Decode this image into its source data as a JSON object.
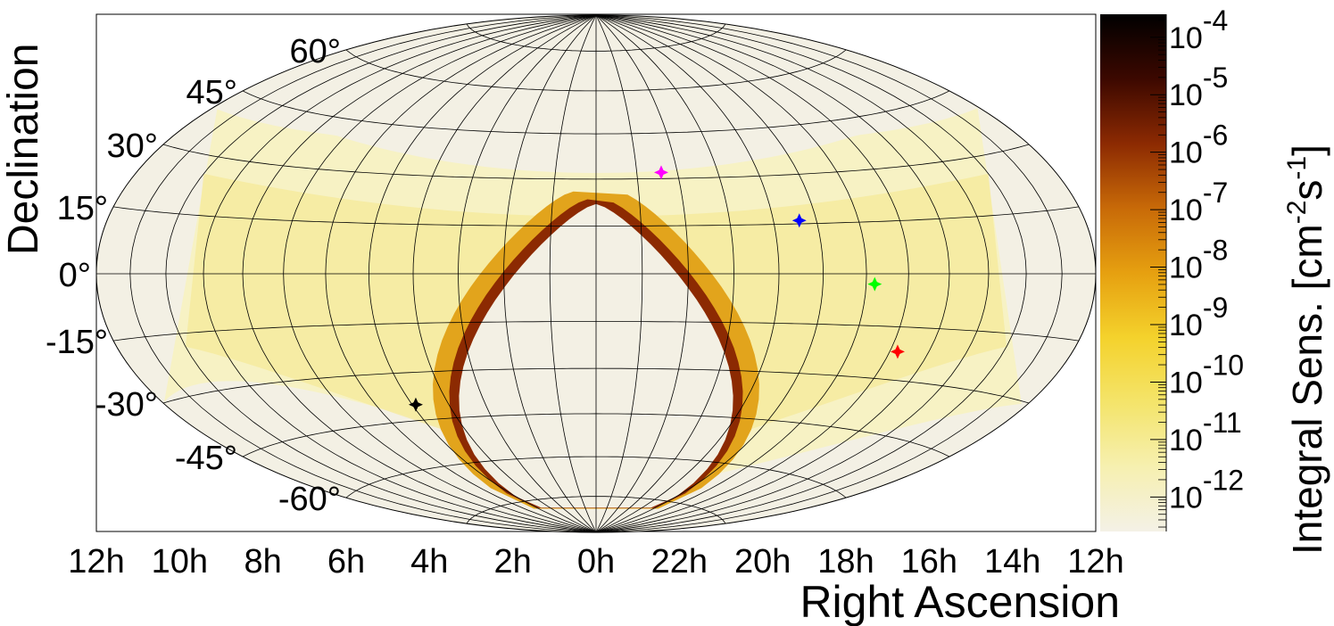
{
  "chart_data": {
    "type": "heatmap",
    "projection": "hammer-aitoff",
    "title": "",
    "xlabel": "Right Ascension",
    "ylabel": "Declination",
    "colorbar_label_base": "Integral Sens. [cm",
    "colorbar_label_exp1": "-2",
    "colorbar_label_mid": "s",
    "colorbar_label_exp2": "-1",
    "colorbar_label_end": "]",
    "colorbar_scale": "log",
    "colorbar_range": [
      -12.6,
      -3.6
    ],
    "colorbar_ticks": [
      {
        "base": "10",
        "exp": "-4",
        "value": -4
      },
      {
        "base": "10",
        "exp": "-5",
        "value": -5
      },
      {
        "base": "10",
        "exp": "-6",
        "value": -6
      },
      {
        "base": "10",
        "exp": "-7",
        "value": -7
      },
      {
        "base": "10",
        "exp": "-8",
        "value": -8
      },
      {
        "base": "10",
        "exp": "-9",
        "value": -9
      },
      {
        "base": "10",
        "exp": "-10",
        "value": -10
      },
      {
        "base": "10",
        "exp": "-11",
        "value": -11
      },
      {
        "base": "10",
        "exp": "-12",
        "value": -12
      }
    ],
    "ra_ticks": [
      {
        "label": "12h",
        "ra": 12
      },
      {
        "label": "10h",
        "ra": 10
      },
      {
        "label": "8h",
        "ra": 8
      },
      {
        "label": "6h",
        "ra": 6
      },
      {
        "label": "4h",
        "ra": 4
      },
      {
        "label": "2h",
        "ra": 2
      },
      {
        "label": "0h",
        "ra": 0
      },
      {
        "label": "22h",
        "ra": 22
      },
      {
        "label": "20h",
        "ra": 20
      },
      {
        "label": "18h",
        "ra": 18
      },
      {
        "label": "16h",
        "ra": 16
      },
      {
        "label": "14h",
        "ra": 14
      },
      {
        "label": "12h",
        "ra": 12
      }
    ],
    "dec_ticks": [
      {
        "label": "60°",
        "dec": 60
      },
      {
        "label": "45°",
        "dec": 45
      },
      {
        "label": "30°",
        "dec": 30
      },
      {
        "label": "15°",
        "dec": 15
      },
      {
        "label": "0°",
        "dec": 0
      },
      {
        "label": "-15°",
        "dec": -15
      },
      {
        "label": "-30°",
        "dec": -30
      },
      {
        "label": "-45°",
        "dec": -45
      },
      {
        "label": "-60°",
        "dec": -60
      }
    ],
    "grid": true,
    "sources": [
      {
        "ra": 1.6,
        "dec": 32,
        "color": "#ff00ff"
      },
      {
        "ra": 4.6,
        "dec": 16,
        "color": "#0000ff"
      },
      {
        "ra": 6.2,
        "dec": -3,
        "color": "#00ff00"
      },
      {
        "ra": 7.2,
        "dec": -22,
        "color": "#ff0000"
      },
      {
        "ra": 19.1,
        "dec": -40,
        "color": "#000000"
      }
    ],
    "colors": {
      "background_region": "#f3f0e4",
      "colorscale": [
        "#f4f1e6",
        "#f6f0b0",
        "#f4e46a",
        "#f4d22c",
        "#e6a010",
        "#c86a08",
        "#8c2a02",
        "#3c0800",
        "#000000"
      ]
    }
  }
}
